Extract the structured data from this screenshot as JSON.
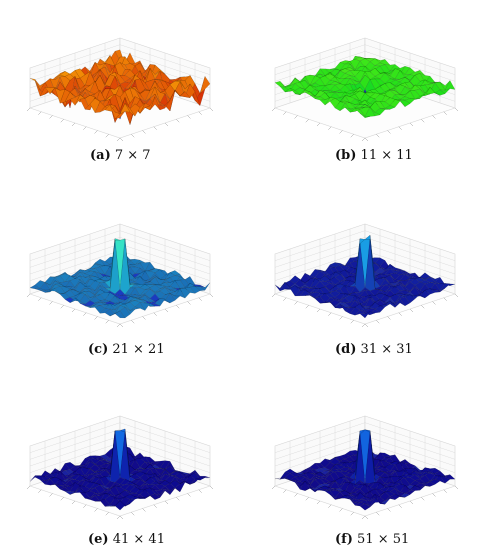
{
  "figure": {
    "panels": [
      {
        "id": "a",
        "label": "(a)",
        "size": "7 × 7",
        "colormap": "hot",
        "shape": "dip"
      },
      {
        "id": "b",
        "label": "(b)",
        "size": "11 × 11",
        "colormap": "yellowgreen",
        "shape": "dip"
      },
      {
        "id": "c",
        "label": "(c)",
        "size": "21 × 21",
        "colormap": "cyan",
        "shape": "peak"
      },
      {
        "id": "d",
        "label": "(d)",
        "size": "31 × 31",
        "colormap": "blue",
        "shape": "peak"
      },
      {
        "id": "e",
        "label": "(e)",
        "size": "41 × 41",
        "colormap": "deepblue",
        "shape": "peak"
      },
      {
        "id": "f",
        "label": "(f)",
        "size": "51 × 51",
        "colormap": "deepblue",
        "shape": "peak"
      }
    ]
  }
}
